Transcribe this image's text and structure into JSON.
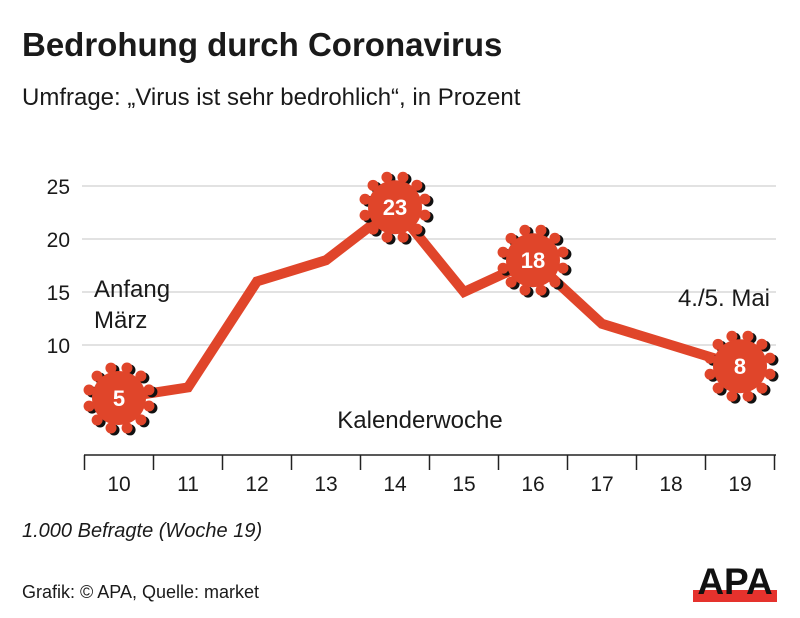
{
  "header": {
    "title": "Bedrohung durch Coronavirus",
    "subtitle": "Umfrage: „Virus ist sehr bedrohlich“, in Prozent"
  },
  "footer": {
    "note": "1.000 Befragte (Woche 19)",
    "source": "Grafik: © APA, Quelle: market",
    "logo": "APA"
  },
  "colors": {
    "line": "#e0452a",
    "logo_red": "#e5322d",
    "grid": "#d9d9d9"
  },
  "chart_data": {
    "type": "line",
    "title": "Bedrohung durch Coronavirus",
    "xlabel": "Kalenderwoche",
    "ylabel": "Prozent",
    "x": [
      10,
      11,
      12,
      13,
      14,
      15,
      16,
      17,
      18,
      19
    ],
    "x_tick_labels": [
      "10",
      "11",
      "12",
      "13",
      "14",
      "15",
      "16",
      "17",
      "18",
      "19"
    ],
    "series": [
      {
        "name": "Virus ist sehr bedrohlich",
        "values": [
          5,
          6,
          16,
          18,
          23,
          15,
          18,
          12,
          10,
          8
        ]
      }
    ],
    "y_ticks": [
      10,
      15,
      20,
      25
    ],
    "y_tick_labels": [
      "10",
      "15",
      "20",
      "25"
    ],
    "ylim": [
      0,
      25
    ],
    "grid": true,
    "highlighted": [
      {
        "week": 10,
        "label": "5"
      },
      {
        "week": 14,
        "label": "23"
      },
      {
        "week": 16,
        "label": "18"
      },
      {
        "week": 19,
        "label": "8"
      }
    ],
    "annotations": {
      "start_line1": "Anfang",
      "start_line2": "März",
      "end": "4./5. Mai"
    }
  }
}
